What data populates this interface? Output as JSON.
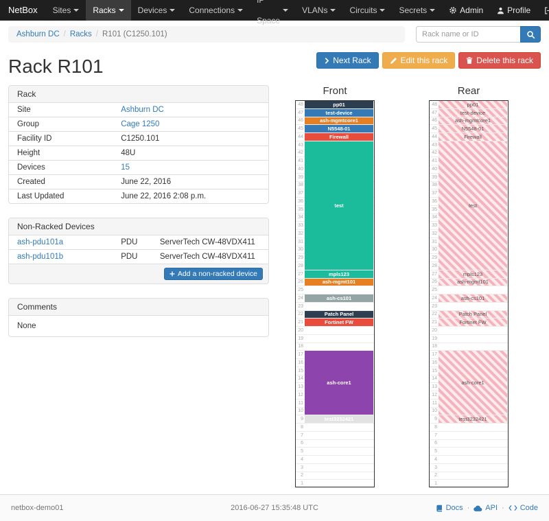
{
  "navbar": {
    "brand": "NetBox",
    "items": [
      {
        "label": "Sites",
        "active": false
      },
      {
        "label": "Racks",
        "active": true
      },
      {
        "label": "Devices",
        "active": false
      },
      {
        "label": "Connections",
        "active": false
      },
      {
        "label": "IP Space",
        "active": false
      },
      {
        "label": "VLANs",
        "active": false
      },
      {
        "label": "Circuits",
        "active": false
      },
      {
        "label": "Secrets",
        "active": false
      }
    ],
    "right_items": [
      {
        "label": "Admin",
        "icon": "gear-icon"
      },
      {
        "label": "Profile",
        "icon": "person-icon"
      },
      {
        "label": "Log out",
        "icon": "logout-icon"
      }
    ]
  },
  "breadcrumb": {
    "items": [
      {
        "label": "Ashburn DC",
        "link": true
      },
      {
        "label": "Racks",
        "link": true
      },
      {
        "label": "R101 (C1250.101)",
        "link": false
      }
    ]
  },
  "search": {
    "placeholder": "Rack name or ID"
  },
  "page": {
    "title": "Rack R101"
  },
  "actions": {
    "next_label": "Next Rack",
    "edit_label": "Edit this rack",
    "delete_label": "Delete this rack"
  },
  "rack_panel": {
    "title": "Rack",
    "rows": [
      {
        "label": "Site",
        "value": "Ashburn DC",
        "link": true
      },
      {
        "label": "Group",
        "value": "Cage 1250",
        "link": true
      },
      {
        "label": "Facility ID",
        "value": "C1250.101",
        "link": false
      },
      {
        "label": "Height",
        "value": "48U",
        "link": false
      },
      {
        "label": "Devices",
        "value": "15",
        "link": true
      },
      {
        "label": "Created",
        "value": "June 22, 2016",
        "link": false
      },
      {
        "label": "Last Updated",
        "value": "June 22, 2016 2:08 p.m.",
        "link": false
      }
    ]
  },
  "nonracked_panel": {
    "title": "Non-Racked Devices",
    "rows": [
      {
        "name": "ash-pdu101a",
        "role": "PDU",
        "model": "ServerTech CW-48VDX411"
      },
      {
        "name": "ash-pdu101b",
        "role": "PDU",
        "model": "ServerTech CW-48VDX411"
      }
    ],
    "add_label": "Add a non-racked device"
  },
  "comments_panel": {
    "title": "Comments",
    "body": "None"
  },
  "elevations": {
    "front_label": "Front",
    "rear_label": "Rear",
    "units": 48,
    "devices": [
      {
        "name": "pp01",
        "top_u": 48,
        "height": 1,
        "color": "#2c3e50"
      },
      {
        "name": "test-device",
        "top_u": 47,
        "height": 1,
        "color": "#337ab7"
      },
      {
        "name": "ash-mgmtcore1",
        "top_u": 46,
        "height": 1,
        "color": "#e67e22"
      },
      {
        "name": "N5548-01",
        "top_u": 45,
        "height": 1,
        "color": "#337ab7"
      },
      {
        "name": "Firewall",
        "top_u": 44,
        "height": 1,
        "color": "#e74c3c"
      },
      {
        "name": "test",
        "top_u": 43,
        "height": 16,
        "color": "#1abc9c"
      },
      {
        "name": "mpls123",
        "top_u": 27,
        "height": 1,
        "color": "#1abc9c"
      },
      {
        "name": "ash-mgmt101",
        "top_u": 26,
        "height": 1,
        "color": "#e67e22"
      },
      {
        "name": "ash-cs101",
        "top_u": 24,
        "height": 1,
        "color": "#95a5a6"
      },
      {
        "name": "Patch Panel",
        "top_u": 22,
        "height": 1,
        "color": "#2c3e50"
      },
      {
        "name": "Fortinet FW",
        "top_u": 21,
        "height": 1,
        "color": "#e74c3c"
      },
      {
        "name": "ash-core1",
        "top_u": 17,
        "height": 8,
        "color": "#8e44ad"
      },
      {
        "name": "test3232421",
        "top_u": 9,
        "height": 1,
        "color": "#e2e2e2",
        "text_color": "#ffffff"
      }
    ]
  },
  "footer": {
    "hostname": "netbox-demo01",
    "timestamp": "2016-06-27 15:35:48 UTC",
    "links": [
      {
        "label": "Docs",
        "icon": "book-icon"
      },
      {
        "label": "API",
        "icon": "cloud-icon"
      },
      {
        "label": "Code",
        "icon": "code-icon"
      }
    ]
  },
  "colors": {
    "primary": "#337ab7",
    "warning": "#f0ad4e",
    "danger": "#d9534f",
    "navbar_bg": "#1f1f1f",
    "rear_hatch": "#f5b4bc"
  }
}
